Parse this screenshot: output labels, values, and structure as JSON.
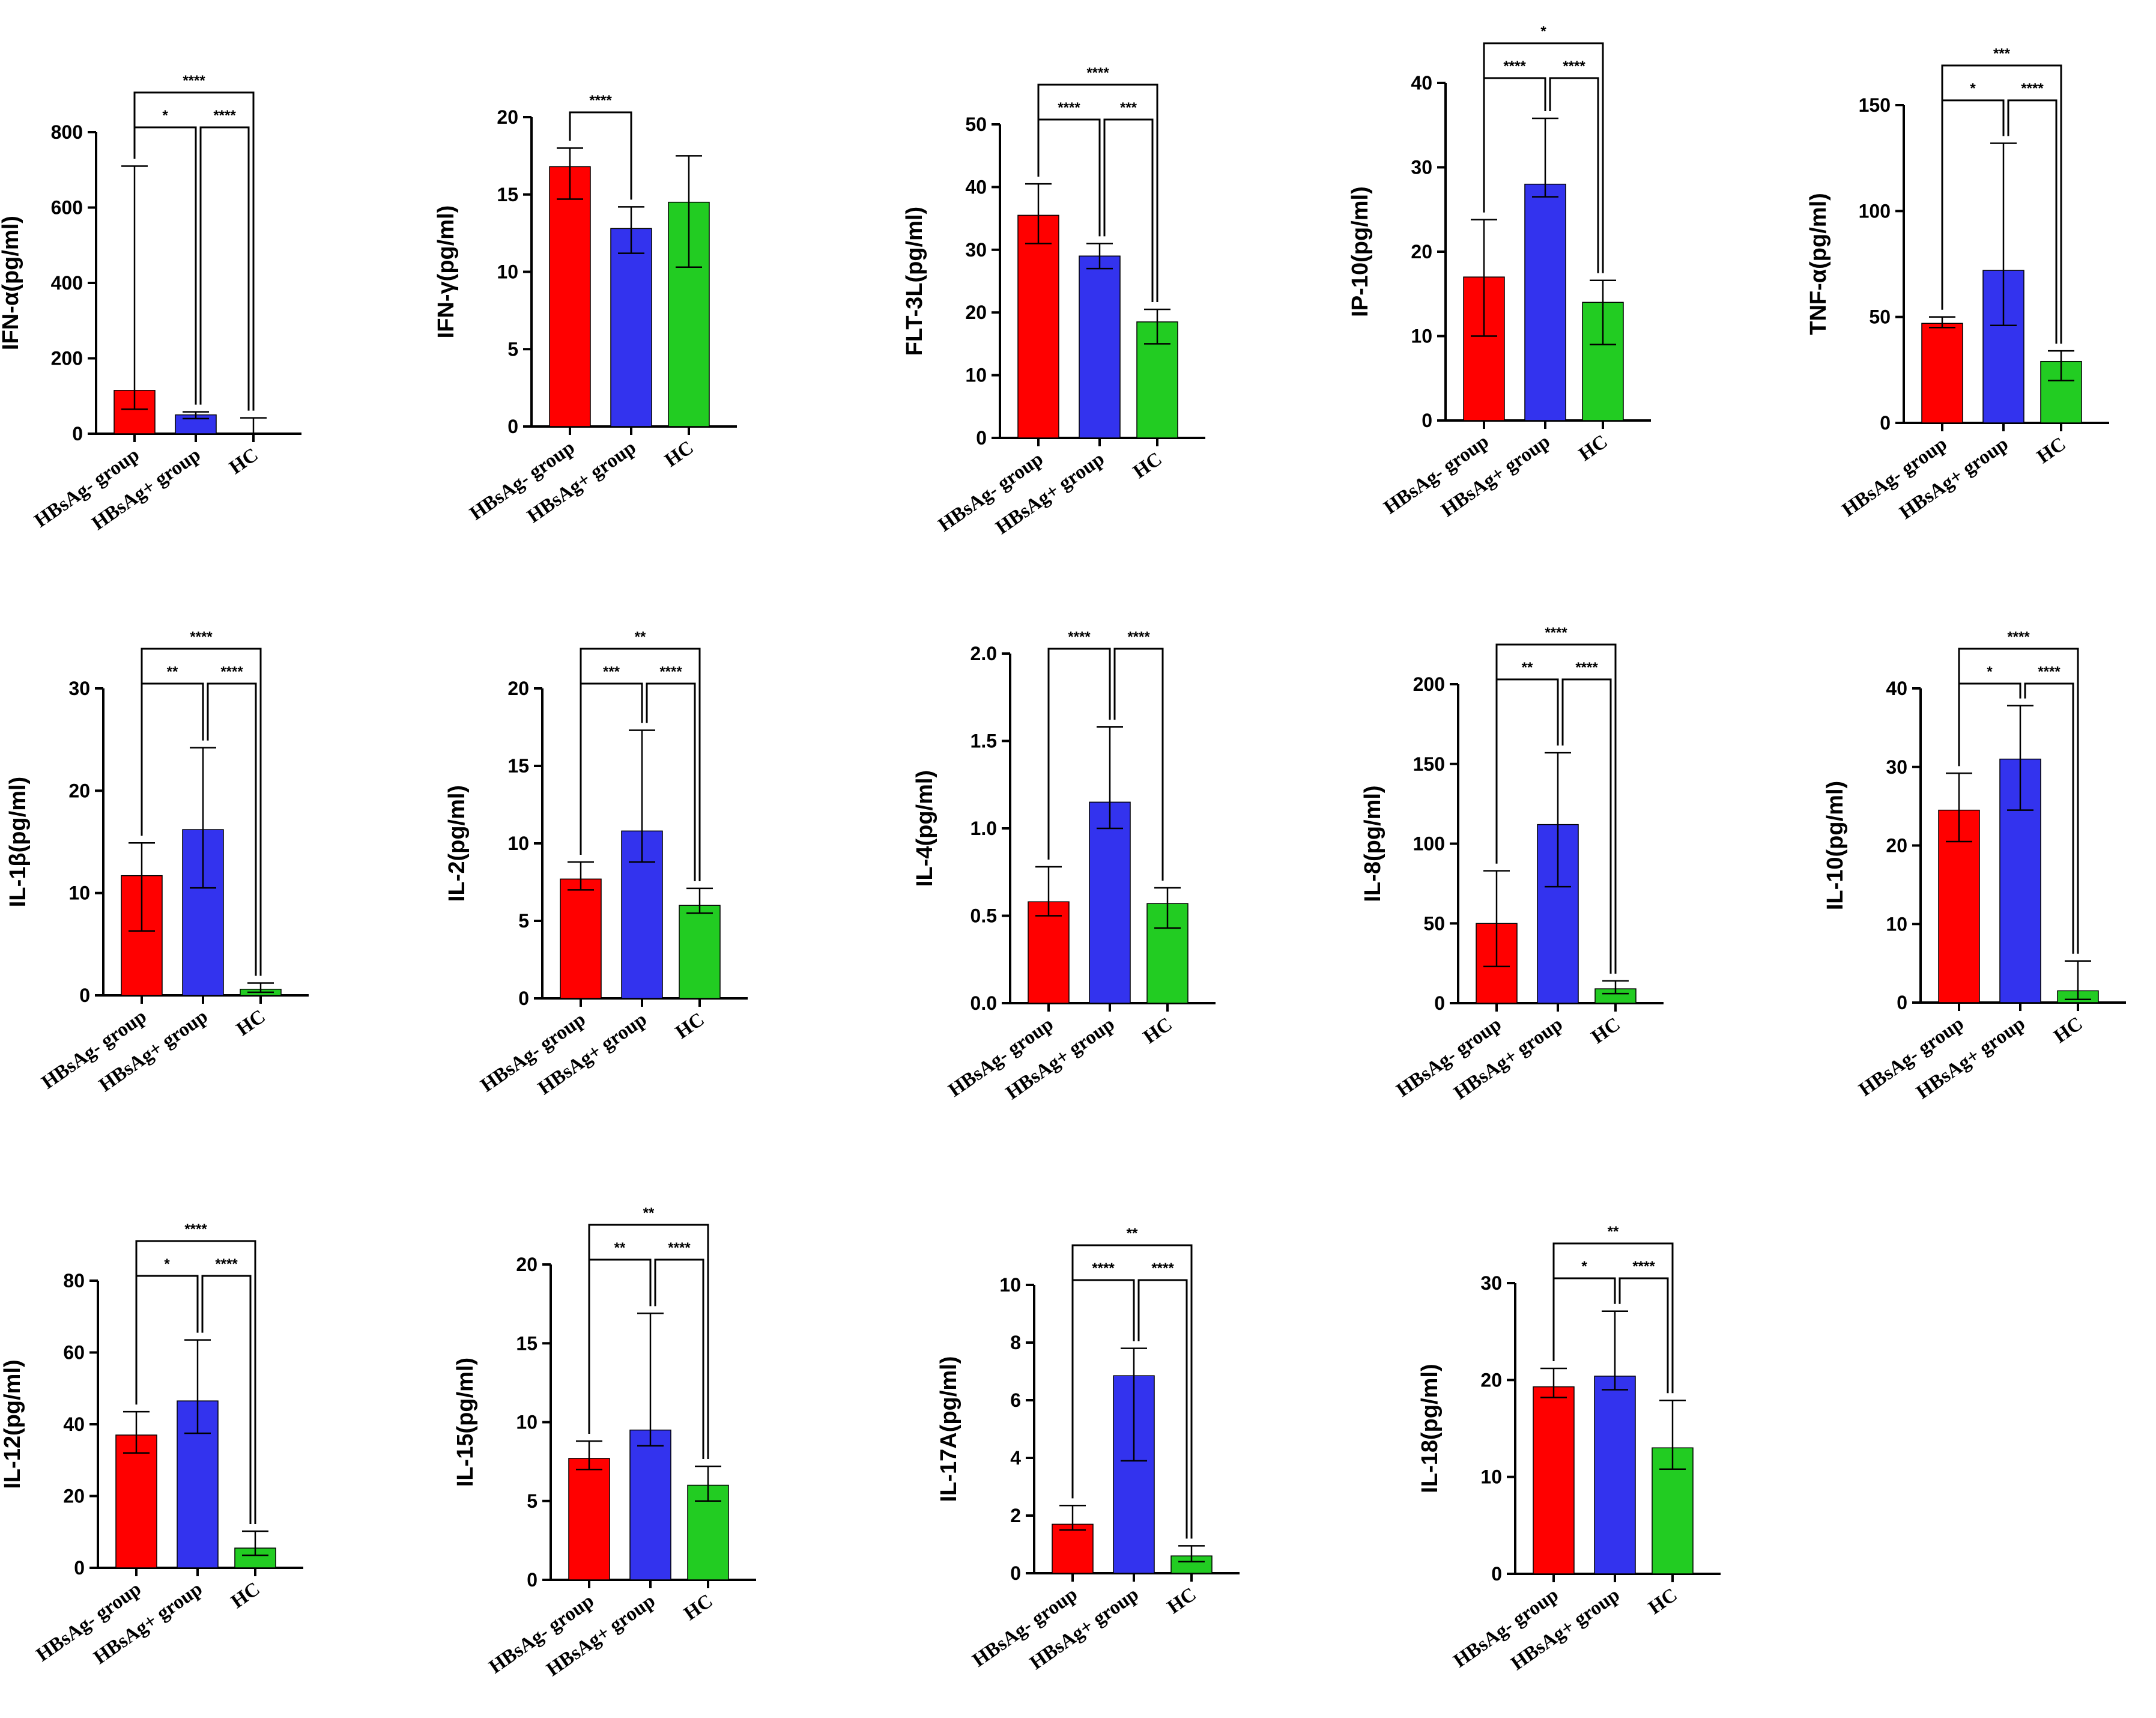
{
  "figure": {
    "group_labels": [
      "HBsAg- group",
      "HBsAg+ group",
      "HC"
    ],
    "colors": {
      "HBsAg- group": "#ff0000",
      "HBsAg+ group": "#3333ee",
      "HC": "#22cc22"
    }
  },
  "chart_data": [
    {
      "type": "bar",
      "ylabel": "IFN-α(pg/ml)",
      "ylim": [
        0,
        800
      ],
      "yticks": [
        0,
        200,
        400,
        600,
        800
      ],
      "categories": [
        "HBsAg- group",
        "HBsAg+ group",
        "HC"
      ],
      "values": [
        115,
        50,
        0
      ],
      "error_low": [
        65,
        40,
        0
      ],
      "error_high": [
        710,
        58,
        42
      ],
      "significance": [
        {
          "from": 0,
          "to": 1,
          "label": "*"
        },
        {
          "from": 1,
          "to": 2,
          "label": "****"
        },
        {
          "from": 0,
          "to": 2,
          "label": "****"
        }
      ]
    },
    {
      "type": "bar",
      "ylabel": "IFN-γ(pg/ml)",
      "ylim": [
        0,
        20
      ],
      "yticks": [
        0,
        5,
        10,
        15,
        20
      ],
      "categories": [
        "HBsAg- group",
        "HBsAg+ group",
        "HC"
      ],
      "values": [
        16.8,
        12.8,
        14.5
      ],
      "error_low": [
        14.7,
        11.2,
        10.3
      ],
      "error_high": [
        18.0,
        14.2,
        17.5
      ],
      "significance": [
        {
          "from": 0,
          "to": 1,
          "label": "****"
        }
      ]
    },
    {
      "type": "bar",
      "ylabel": "FLT-3L(pg/ml)",
      "ylim": [
        0,
        50
      ],
      "yticks": [
        0,
        10,
        20,
        30,
        40,
        50
      ],
      "categories": [
        "HBsAg- group",
        "HBsAg+ group",
        "HC"
      ],
      "values": [
        35.5,
        29,
        18.5
      ],
      "error_low": [
        31,
        27,
        15
      ],
      "error_high": [
        40.5,
        31,
        20.5
      ],
      "significance": [
        {
          "from": 0,
          "to": 1,
          "label": "****"
        },
        {
          "from": 1,
          "to": 2,
          "label": "***"
        },
        {
          "from": 0,
          "to": 2,
          "label": "****"
        }
      ]
    },
    {
      "type": "bar",
      "ylabel": "IP-10(pg/ml)",
      "ylim": [
        0,
        40
      ],
      "yticks": [
        0,
        10,
        20,
        30,
        40
      ],
      "categories": [
        "HBsAg- group",
        "HBsAg+ group",
        "HC"
      ],
      "values": [
        17,
        28,
        14
      ],
      "error_low": [
        10,
        26.5,
        9
      ],
      "error_high": [
        23.8,
        35.8,
        16.6
      ],
      "significance": [
        {
          "from": 0,
          "to": 1,
          "label": "****"
        },
        {
          "from": 1,
          "to": 2,
          "label": "****"
        },
        {
          "from": 0,
          "to": 2,
          "label": "*"
        }
      ]
    },
    {
      "type": "bar",
      "ylabel": "TNF-α(pg/ml)",
      "ylim": [
        0,
        150
      ],
      "yticks": [
        0,
        50,
        100,
        150
      ],
      "categories": [
        "HBsAg- group",
        "HBsAg+ group",
        "HC"
      ],
      "values": [
        47,
        72,
        29
      ],
      "error_low": [
        45,
        46,
        20
      ],
      "error_high": [
        50,
        132,
        34
      ],
      "significance": [
        {
          "from": 0,
          "to": 1,
          "label": "*"
        },
        {
          "from": 1,
          "to": 2,
          "label": "****"
        },
        {
          "from": 0,
          "to": 2,
          "label": "***"
        }
      ]
    },
    {
      "type": "bar",
      "ylabel": "IL-1β(pg/ml)",
      "ylim": [
        0,
        30
      ],
      "yticks": [
        0,
        10,
        20,
        30
      ],
      "categories": [
        "HBsAg- group",
        "HBsAg+ group",
        "HC"
      ],
      "values": [
        11.7,
        16.2,
        0.6
      ],
      "error_low": [
        6.3,
        10.5,
        0.3
      ],
      "error_high": [
        14.9,
        24.2,
        1.2
      ],
      "significance": [
        {
          "from": 0,
          "to": 1,
          "label": "**"
        },
        {
          "from": 1,
          "to": 2,
          "label": "****"
        },
        {
          "from": 0,
          "to": 2,
          "label": "****"
        }
      ]
    },
    {
      "type": "bar",
      "ylabel": "IL-2(pg/ml)",
      "ylim": [
        0,
        20
      ],
      "yticks": [
        0,
        5,
        10,
        15,
        20
      ],
      "categories": [
        "HBsAg- group",
        "HBsAg+ group",
        "HC"
      ],
      "values": [
        7.7,
        10.8,
        6.0
      ],
      "error_low": [
        7.0,
        8.8,
        5.5
      ],
      "error_high": [
        8.8,
        17.3,
        7.1
      ],
      "significance": [
        {
          "from": 0,
          "to": 1,
          "label": "***"
        },
        {
          "from": 1,
          "to": 2,
          "label": "****"
        },
        {
          "from": 0,
          "to": 2,
          "label": "**"
        }
      ]
    },
    {
      "type": "bar",
      "ylabel": "IL-4(pg/ml)",
      "ylim": [
        0,
        2.0
      ],
      "yticks": [
        "0.0",
        "0.5",
        "1.0",
        "1.5",
        "2.0"
      ],
      "categories": [
        "HBsAg- group",
        "HBsAg+ group",
        "HC"
      ],
      "values": [
        0.58,
        1.15,
        0.57
      ],
      "error_low": [
        0.5,
        1.0,
        0.43
      ],
      "error_high": [
        0.78,
        1.58,
        0.66
      ],
      "significance": [
        {
          "from": 0,
          "to": 1,
          "label": "****"
        },
        {
          "from": 1,
          "to": 2,
          "label": "****"
        }
      ]
    },
    {
      "type": "bar",
      "ylabel": "IL-8(pg/ml)",
      "ylim": [
        0,
        200
      ],
      "yticks": [
        0,
        50,
        100,
        150,
        200
      ],
      "categories": [
        "HBsAg- group",
        "HBsAg+ group",
        "HC"
      ],
      "values": [
        50,
        112,
        9
      ],
      "error_low": [
        23,
        73,
        6
      ],
      "error_high": [
        83,
        157,
        14
      ],
      "significance": [
        {
          "from": 0,
          "to": 1,
          "label": "**"
        },
        {
          "from": 1,
          "to": 2,
          "label": "****"
        },
        {
          "from": 0,
          "to": 2,
          "label": "****"
        }
      ]
    },
    {
      "type": "bar",
      "ylabel": "IL-10(pg/ml)",
      "ylim": [
        0,
        40
      ],
      "yticks": [
        0,
        10,
        20,
        30,
        40
      ],
      "categories": [
        "HBsAg- group",
        "HBsAg+ group",
        "HC"
      ],
      "values": [
        24.5,
        31,
        1.5
      ],
      "error_low": [
        20.5,
        24.5,
        0.4
      ],
      "error_high": [
        29.2,
        37.8,
        5.3
      ],
      "significance": [
        {
          "from": 0,
          "to": 1,
          "label": "*"
        },
        {
          "from": 1,
          "to": 2,
          "label": "****"
        },
        {
          "from": 0,
          "to": 2,
          "label": "****"
        }
      ]
    },
    {
      "type": "bar",
      "ylabel": "IL-12(pg/ml)",
      "ylim": [
        0,
        80
      ],
      "yticks": [
        0,
        20,
        40,
        60,
        80
      ],
      "categories": [
        "HBsAg- group",
        "HBsAg+ group",
        "HC"
      ],
      "values": [
        37,
        46.5,
        5.5
      ],
      "error_low": [
        32,
        37.5,
        3.5
      ],
      "error_high": [
        43.5,
        63.5,
        10.2
      ],
      "significance": [
        {
          "from": 0,
          "to": 1,
          "label": "*"
        },
        {
          "from": 1,
          "to": 2,
          "label": "****"
        },
        {
          "from": 0,
          "to": 2,
          "label": "****"
        }
      ]
    },
    {
      "type": "bar",
      "ylabel": "IL-15(pg/ml)",
      "ylim": [
        0,
        20
      ],
      "yticks": [
        0,
        5,
        10,
        15,
        20
      ],
      "categories": [
        "HBsAg- group",
        "HBsAg+ group",
        "HC"
      ],
      "values": [
        7.7,
        9.5,
        6.0
      ],
      "error_low": [
        7.0,
        8.5,
        5.0
      ],
      "error_high": [
        8.8,
        16.9,
        7.2
      ],
      "significance": [
        {
          "from": 0,
          "to": 1,
          "label": "**"
        },
        {
          "from": 1,
          "to": 2,
          "label": "****"
        },
        {
          "from": 0,
          "to": 2,
          "label": "**"
        }
      ]
    },
    {
      "type": "bar",
      "ylabel": "IL-17A(pg/ml)",
      "ylim": [
        0,
        10
      ],
      "yticks": [
        0,
        2,
        4,
        6,
        8,
        10
      ],
      "categories": [
        "HBsAg- group",
        "HBsAg+ group",
        "HC"
      ],
      "values": [
        1.7,
        6.85,
        0.6
      ],
      "error_low": [
        1.5,
        3.9,
        0.4
      ],
      "error_high": [
        2.35,
        7.8,
        0.95
      ],
      "significance": [
        {
          "from": 0,
          "to": 1,
          "label": "****"
        },
        {
          "from": 1,
          "to": 2,
          "label": "****"
        },
        {
          "from": 0,
          "to": 2,
          "label": "**"
        }
      ]
    },
    {
      "type": "bar",
      "ylabel": "IL-18(pg/ml)",
      "ylim": [
        0,
        30
      ],
      "yticks": [
        0,
        10,
        20,
        30
      ],
      "categories": [
        "HBsAg- group",
        "HBsAg+ group",
        "HC"
      ],
      "values": [
        19.3,
        20.4,
        13
      ],
      "error_low": [
        18.2,
        19.0,
        10.8
      ],
      "error_high": [
        21.2,
        27.1,
        17.9
      ],
      "significance": [
        {
          "from": 0,
          "to": 1,
          "label": "*"
        },
        {
          "from": 1,
          "to": 2,
          "label": "****"
        },
        {
          "from": 0,
          "to": 2,
          "label": "**"
        }
      ]
    }
  ]
}
